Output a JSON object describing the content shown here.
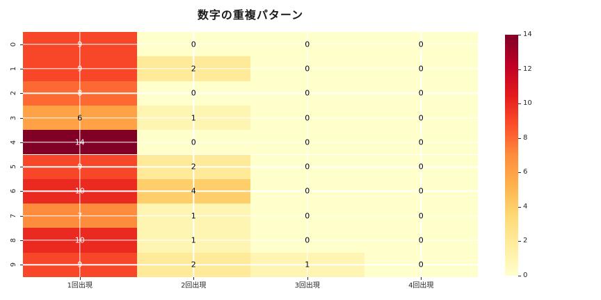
{
  "title": "数字の重複パターン",
  "chart_data": {
    "type": "heatmap",
    "title": "数字の重複パターン",
    "row_labels": [
      "0",
      "1",
      "2",
      "3",
      "4",
      "5",
      "6",
      "7",
      "8",
      "9"
    ],
    "column_labels": [
      "1回出現",
      "2回出現",
      "3回出現",
      "4回出現"
    ],
    "values": [
      [
        9,
        0,
        0,
        0
      ],
      [
        9,
        2,
        0,
        0
      ],
      [
        8,
        0,
        0,
        0
      ],
      [
        6,
        1,
        0,
        0
      ],
      [
        14,
        0,
        0,
        0
      ],
      [
        9,
        2,
        0,
        0
      ],
      [
        10,
        4,
        0,
        0
      ],
      [
        7,
        1,
        0,
        0
      ],
      [
        10,
        1,
        0,
        0
      ],
      [
        9,
        2,
        1,
        0
      ]
    ],
    "vmin": 0,
    "vmax": 14,
    "colormap": "YlOrRd",
    "colormap_stops": [
      "#ffffcc",
      "#ffeda0",
      "#fed976",
      "#feb24c",
      "#fd8d3c",
      "#fc4e2a",
      "#e31a1c",
      "#bd0026",
      "#800026"
    ],
    "colorbar_ticks": [
      "0",
      "2",
      "4",
      "6",
      "8",
      "10",
      "12",
      "14"
    ],
    "annotation_color_light_cells": "#000000",
    "annotation_color_dark_cells": "#ffffff",
    "grid_color": "#ffffff",
    "grid": true,
    "legend_position": "right-colorbar"
  }
}
